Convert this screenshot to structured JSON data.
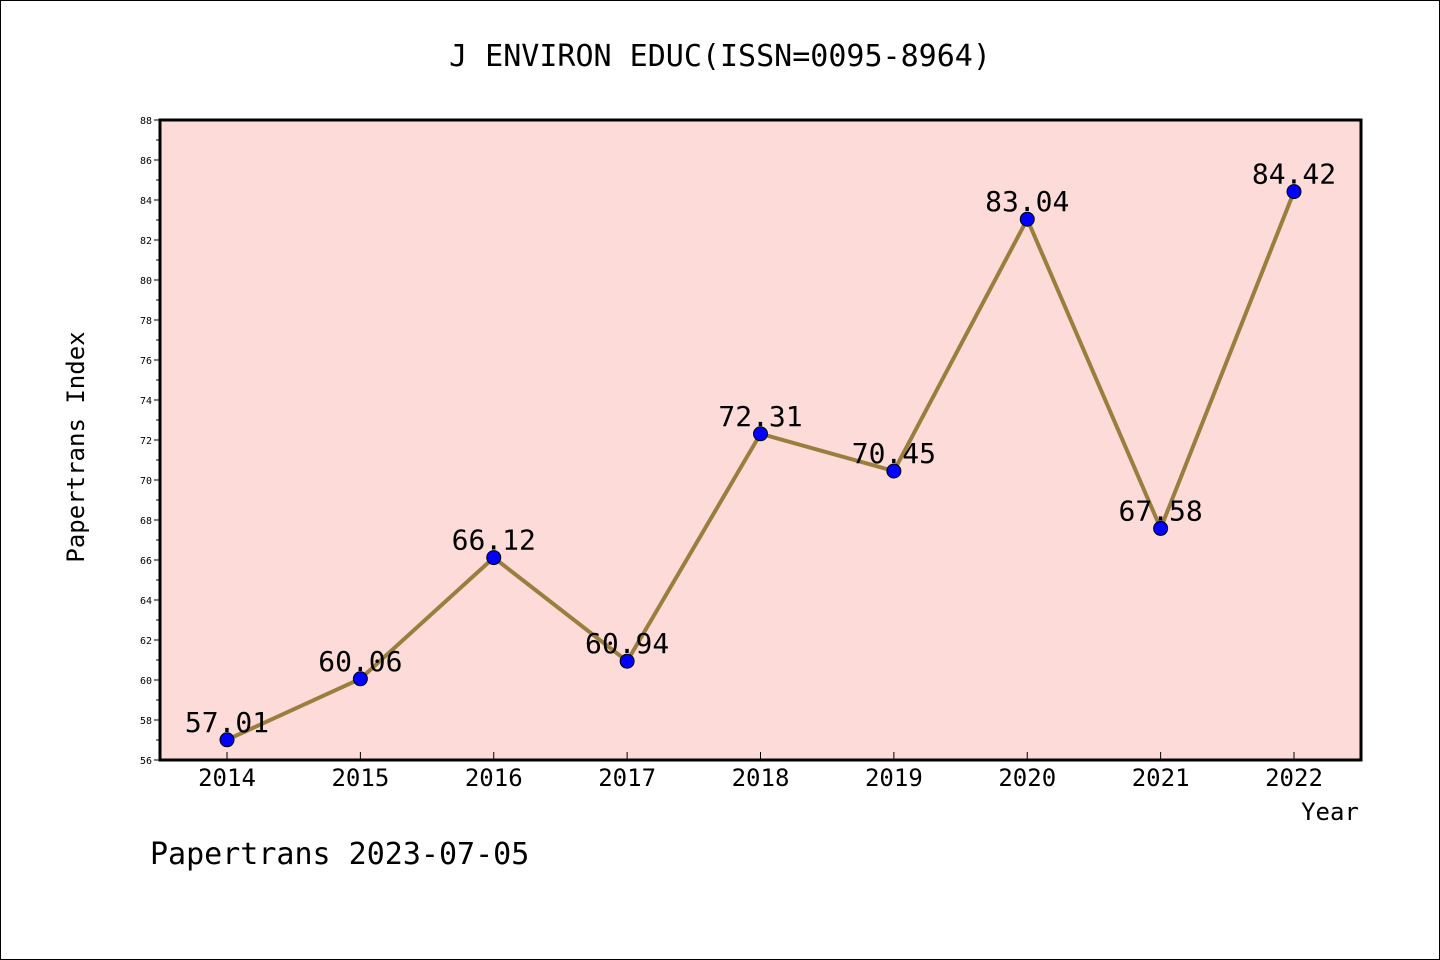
{
  "chart_data": {
    "type": "line",
    "title": "J ENVIRON EDUC(ISSN=0095-8964)",
    "xlabel": "Year",
    "ylabel": "Papertrans Index",
    "categories": [
      "2014",
      "2015",
      "2016",
      "2017",
      "2018",
      "2019",
      "2020",
      "2021",
      "2022"
    ],
    "series": [
      {
        "values": [
          57.01,
          60.06,
          66.12,
          60.94,
          72.31,
          70.45,
          83.04,
          67.58,
          84.42
        ],
        "labels": [
          "57.01",
          "60.06",
          "66.12",
          "60.94",
          "72.31",
          "70.45",
          "83.04",
          "67.58",
          "84.42"
        ]
      }
    ],
    "ylim": [
      56,
      88
    ],
    "yticks": [
      "56",
      "58",
      "60",
      "62",
      "64",
      "66",
      "68",
      "70",
      "72",
      "74",
      "76",
      "78",
      "80",
      "82",
      "84",
      "86",
      "88"
    ],
    "grid": false,
    "colors": {
      "plot_background": "#fddbd9",
      "line": "#9b7e3d",
      "marker": "#0000ff"
    }
  },
  "footer": {
    "text": "Papertrans 2023-07-05"
  }
}
